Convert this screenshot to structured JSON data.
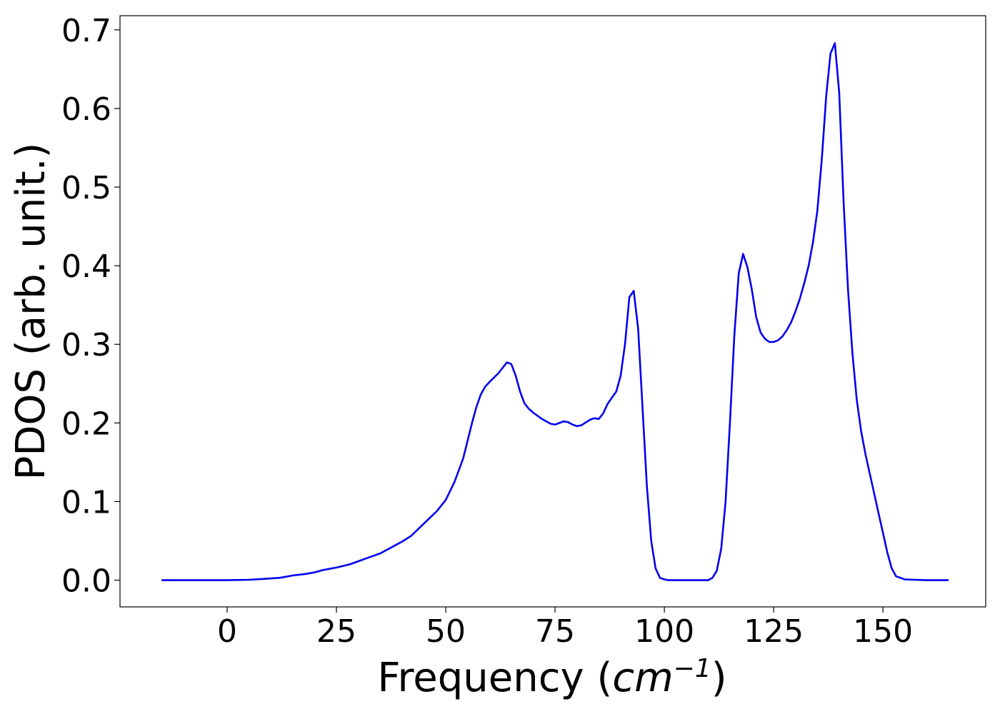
{
  "chart_data": {
    "type": "line",
    "title": "",
    "xlabel": "Frequency (cm⁻¹)",
    "xlabel_parts": {
      "prefix": "Frequency (",
      "unit_base": "cm",
      "unit_exponent": "−1",
      "suffix": ")"
    },
    "ylabel": "PDOS (arb. unit.)",
    "xlim": [
      -24.5,
      173.5
    ],
    "ylim": [
      -0.034,
      0.718
    ],
    "xticks": [
      0,
      25,
      50,
      75,
      100,
      125,
      150
    ],
    "yticks": [
      0.0,
      0.1,
      0.2,
      0.3,
      0.4,
      0.5,
      0.6,
      0.7
    ],
    "xtick_labels": [
      "0",
      "25",
      "50",
      "75",
      "100",
      "125",
      "150"
    ],
    "ytick_labels": [
      "0.0",
      "0.1",
      "0.2",
      "0.3",
      "0.4",
      "0.5",
      "0.6",
      "0.7"
    ],
    "grid": false,
    "legend": "none",
    "series": [
      {
        "color": "#0000ee",
        "x": [
          -15,
          -10,
          -5,
          0,
          5,
          8,
          12,
          15,
          18,
          20,
          22,
          25,
          28,
          30,
          32,
          35,
          38,
          40,
          42,
          45,
          48,
          50,
          52,
          54,
          56,
          57,
          58,
          59,
          60,
          62,
          63,
          64,
          65,
          66,
          67,
          68,
          69,
          70,
          72,
          74,
          75,
          76,
          77,
          78,
          79,
          80,
          81,
          83,
          84,
          85,
          86,
          87,
          88,
          89,
          90,
          91,
          92,
          93,
          94,
          95,
          96,
          97,
          98,
          99,
          100,
          101,
          102,
          105,
          110,
          111,
          112,
          113,
          114,
          115,
          116,
          117,
          118,
          119,
          120,
          121,
          122,
          123,
          124,
          125,
          126,
          127,
          128,
          129,
          130,
          131,
          132,
          133,
          134,
          135,
          136,
          137,
          138,
          139,
          140,
          141,
          142,
          143,
          144,
          145,
          146,
          147,
          148,
          149,
          150,
          151,
          152,
          153,
          155,
          160,
          165
        ],
        "y": [
          0.0,
          0.0,
          0.0,
          0.0,
          0.0005,
          0.0015,
          0.003,
          0.006,
          0.008,
          0.01,
          0.013,
          0.016,
          0.02,
          0.024,
          0.028,
          0.034,
          0.043,
          0.049,
          0.056,
          0.072,
          0.088,
          0.102,
          0.125,
          0.155,
          0.2,
          0.22,
          0.236,
          0.246,
          0.252,
          0.263,
          0.27,
          0.277,
          0.275,
          0.26,
          0.24,
          0.225,
          0.218,
          0.213,
          0.205,
          0.199,
          0.198,
          0.2,
          0.202,
          0.201,
          0.198,
          0.196,
          0.197,
          0.204,
          0.206,
          0.205,
          0.212,
          0.224,
          0.232,
          0.24,
          0.26,
          0.3,
          0.36,
          0.368,
          0.32,
          0.22,
          0.12,
          0.05,
          0.015,
          0.003,
          0.001,
          0.0,
          0.0,
          0.0,
          0.0,
          0.003,
          0.012,
          0.04,
          0.1,
          0.2,
          0.31,
          0.39,
          0.415,
          0.398,
          0.37,
          0.335,
          0.315,
          0.307,
          0.303,
          0.303,
          0.305,
          0.31,
          0.318,
          0.328,
          0.342,
          0.358,
          0.378,
          0.4,
          0.43,
          0.47,
          0.535,
          0.615,
          0.67,
          0.683,
          0.62,
          0.48,
          0.37,
          0.29,
          0.23,
          0.19,
          0.16,
          0.135,
          0.11,
          0.085,
          0.06,
          0.035,
          0.015,
          0.005,
          0.001,
          0.0,
          0.0
        ]
      }
    ]
  }
}
